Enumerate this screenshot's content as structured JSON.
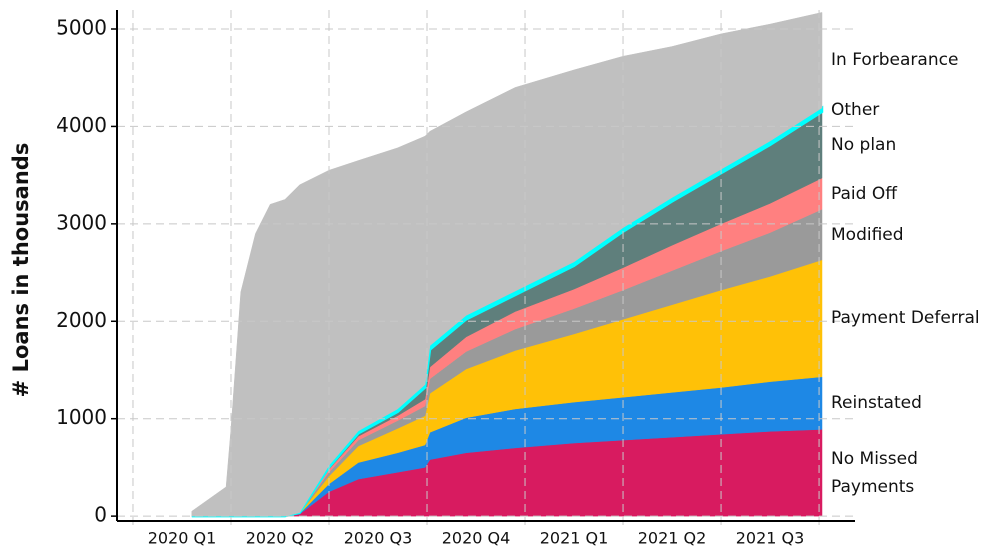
{
  "chart_data": {
    "type": "stacked_area",
    "y_label": "# Loans in thousands",
    "x": [
      0.6,
      0.95,
      1.0,
      1.1,
      1.25,
      1.4,
      1.55,
      1.7,
      2.0,
      2.3,
      2.7,
      2.98,
      3.03,
      3.4,
      3.9,
      4.5,
      5.0,
      5.5,
      6.0,
      6.5,
      7.03
    ],
    "xlim": [
      -0.163,
      7.03
    ],
    "xticks": [
      {
        "value": 0.5,
        "label": "2020 Q1"
      },
      {
        "value": 1.5,
        "label": "2020 Q2"
      },
      {
        "value": 2.5,
        "label": "2020 Q3"
      },
      {
        "value": 3.5,
        "label": "2020 Q4"
      },
      {
        "value": 4.5,
        "label": "2021 Q1"
      },
      {
        "value": 5.5,
        "label": "2021 Q2"
      },
      {
        "value": 6.5,
        "label": "2021 Q3"
      }
    ],
    "xgrid": [
      0,
      1,
      2,
      3,
      4,
      5,
      6,
      7
    ],
    "ylim": [
      -50,
      5195
    ],
    "yticks": [
      0,
      1000,
      2000,
      3000,
      4000,
      5000
    ],
    "grid": true,
    "series": [
      {
        "name": "No Missed Payments",
        "color": "#d81b60",
        "values": [
          0,
          0,
          0,
          0,
          0,
          0,
          0,
          20,
          250,
          380,
          450,
          500,
          580,
          650,
          700,
          750,
          780,
          810,
          840,
          870,
          890
        ]
      },
      {
        "name": "Reinstated",
        "color": "#1e88e5",
        "values": [
          0,
          0,
          0,
          0,
          0,
          0,
          0,
          5,
          80,
          170,
          200,
          230,
          280,
          360,
          400,
          420,
          440,
          460,
          480,
          510,
          540
        ]
      },
      {
        "name": "Payment Deferral",
        "color": "#ffc107",
        "values": [
          0,
          0,
          0,
          0,
          0,
          0,
          0,
          5,
          80,
          170,
          250,
          300,
          400,
          500,
          600,
          700,
          800,
          900,
          1000,
          1080,
          1200
        ]
      },
      {
        "name": "Modified",
        "color": "#9a9a9a",
        "values": [
          0,
          0,
          0,
          0,
          0,
          0,
          0,
          3,
          40,
          60,
          80,
          100,
          150,
          180,
          220,
          260,
          300,
          350,
          400,
          450,
          520
        ]
      },
      {
        "name": "Paid Off",
        "color": "#ff8080",
        "values": [
          0,
          0,
          0,
          0,
          0,
          0,
          0,
          2,
          30,
          40,
          50,
          70,
          120,
          150,
          180,
          200,
          230,
          260,
          280,
          300,
          320
        ]
      },
      {
        "name": "No plan",
        "color": "#5f7f7c",
        "values": [
          0,
          0,
          0,
          0,
          0,
          0,
          0,
          0,
          20,
          30,
          40,
          120,
          180,
          180,
          170,
          240,
          370,
          450,
          520,
          600,
          680
        ]
      },
      {
        "name": "Other",
        "color": "#00ffff",
        "values": [
          0,
          0,
          0,
          0,
          0,
          0,
          0,
          0,
          20,
          25,
          30,
          30,
          40,
          40,
          40,
          40,
          40,
          40,
          40,
          40,
          40
        ]
      },
      {
        "name": "In Forbearance",
        "color": "#c0c0c0",
        "values": [
          50,
          300,
          900,
          2300,
          2900,
          3200,
          3250,
          3365,
          3030,
          2775,
          2680,
          2550,
          2200,
          2090,
          2090,
          1970,
          1760,
          1550,
          1390,
          1200,
          980
        ]
      }
    ]
  }
}
